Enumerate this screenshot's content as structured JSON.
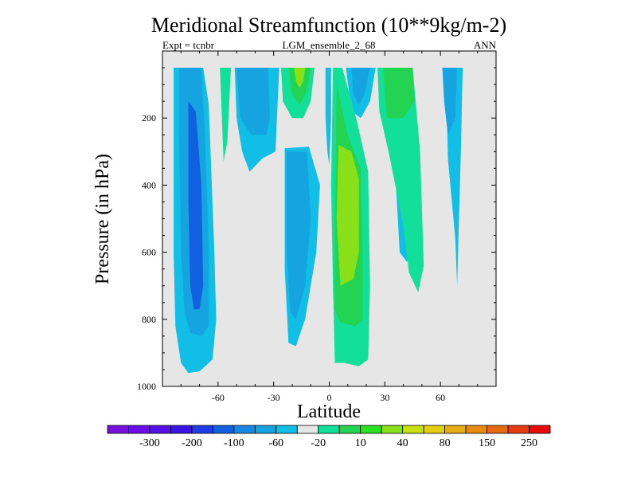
{
  "chart_data": {
    "type": "heatmap",
    "title": "Meridional Streamfunction (10**9kg/m-2)",
    "subtitle_left": "Expt = tcnbr",
    "subtitle_center": "LGM_ensemble_2_68",
    "subtitle_right": "ANN",
    "xlabel": "Latitude",
    "ylabel": "Pressure (in hPa)",
    "xlim": [
      -90,
      90
    ],
    "ylim": [
      0,
      1000
    ],
    "x_ticks": [
      {
        "value": -60,
        "label": "-60"
      },
      {
        "value": -30,
        "label": "-30"
      },
      {
        "value": 0,
        "label": "0"
      },
      {
        "value": 30,
        "label": "30"
      },
      {
        "value": 60,
        "label": "60"
      }
    ],
    "y_ticks": [
      {
        "value": 200,
        "label": "200"
      },
      {
        "value": 400,
        "label": "400"
      },
      {
        "value": 600,
        "label": "600"
      },
      {
        "value": 800,
        "label": "800"
      },
      {
        "value": 1000,
        "label": "1000"
      }
    ],
    "background_color": "#e6e6e6",
    "colorbar": {
      "colors": [
        "#7a10e0",
        "#6a0ee6",
        "#5410e6",
        "#3a14e6",
        "#1f3ce6",
        "#1060e0",
        "#1a88e0",
        "#16a4e0",
        "#10bee6",
        "#e6e6e6",
        "#12e09a",
        "#22d452",
        "#2ae020",
        "#8ae018",
        "#c8e010",
        "#e0d010",
        "#e6ac10",
        "#e68a10",
        "#e66a10",
        "#e63a10",
        "#e60a0a"
      ],
      "labels": [
        "-300",
        "-200",
        "-100",
        "-60",
        "-20",
        "10",
        "40",
        "80",
        "150",
        "250"
      ],
      "label_after_box": [
        1,
        3,
        5,
        7,
        9,
        11,
        13,
        15,
        17,
        19
      ]
    },
    "regions": [
      {
        "name": "south-cell-outer",
        "value": -20,
        "color": "#10bee6",
        "points": [
          [
            -84,
            50
          ],
          [
            -68,
            50
          ],
          [
            -65,
            160
          ],
          [
            -62,
            600
          ],
          [
            -61,
            800
          ],
          [
            -63,
            920
          ],
          [
            -70,
            955
          ],
          [
            -76,
            960
          ],
          [
            -80,
            930
          ],
          [
            -83,
            820
          ],
          [
            -84,
            600
          ]
        ]
      },
      {
        "name": "south-cell-mid",
        "value": -60,
        "color": "#16a4e0",
        "points": [
          [
            -81,
            50
          ],
          [
            -69,
            50
          ],
          [
            -67,
            250
          ],
          [
            -65,
            600
          ],
          [
            -65,
            820
          ],
          [
            -69,
            850
          ],
          [
            -75,
            840
          ],
          [
            -78,
            780
          ],
          [
            -80,
            600
          ],
          [
            -81,
            250
          ]
        ]
      },
      {
        "name": "south-cell-inner",
        "value": -100,
        "color": "#1060e0",
        "points": [
          [
            -76,
            150
          ],
          [
            -72,
            180
          ],
          [
            -69,
            400
          ],
          [
            -68,
            700
          ],
          [
            -70,
            770
          ],
          [
            -73,
            770
          ],
          [
            -75,
            700
          ],
          [
            -76,
            450
          ]
        ]
      },
      {
        "name": "band-a-cyan",
        "value": -20,
        "color": "#10bee6",
        "points": [
          [
            -51,
            50
          ],
          [
            -27,
            50
          ],
          [
            -29,
            300
          ],
          [
            -36,
            320
          ],
          [
            -43,
            360
          ],
          [
            -47,
            300
          ],
          [
            -50,
            200
          ]
        ]
      },
      {
        "name": "band-a-blue",
        "value": -60,
        "color": "#16a4e0",
        "points": [
          [
            -50,
            50
          ],
          [
            -33,
            50
          ],
          [
            -32,
            200
          ],
          [
            -34,
            250
          ],
          [
            -42,
            250
          ],
          [
            -48,
            200
          ]
        ]
      },
      {
        "name": "band-b-cyan",
        "value": -20,
        "color": "#10bee6",
        "points": [
          [
            -24,
            290
          ],
          [
            -11,
            285
          ],
          [
            -5,
            400
          ],
          [
            -7,
            600
          ],
          [
            -13,
            800
          ],
          [
            -18,
            880
          ],
          [
            -22,
            870
          ],
          [
            -24,
            650
          ]
        ]
      },
      {
        "name": "band-b-blue",
        "value": -60,
        "color": "#16a4e0",
        "points": [
          [
            -23,
            300
          ],
          [
            -12,
            300
          ],
          [
            -10,
            500
          ],
          [
            -13,
            700
          ],
          [
            -18,
            800
          ],
          [
            -21,
            780
          ],
          [
            -23,
            600
          ]
        ]
      },
      {
        "name": "nh-top-cyan",
        "value": -20,
        "color": "#10bee6",
        "points": [
          [
            9,
            50
          ],
          [
            25,
            50
          ],
          [
            22,
            150
          ],
          [
            17,
            200
          ],
          [
            12,
            180
          ]
        ]
      },
      {
        "name": "nh-top-blue",
        "value": -60,
        "color": "#16a4e0",
        "points": [
          [
            12,
            50
          ],
          [
            22,
            50
          ],
          [
            19,
            130
          ],
          [
            16,
            160
          ],
          [
            13,
            130
          ]
        ]
      },
      {
        "name": "thin-cyan-1",
        "value": -20,
        "color": "#10bee6",
        "points": [
          [
            -2,
            50
          ],
          [
            1,
            50
          ],
          [
            1,
            200
          ],
          [
            0,
            340
          ],
          [
            -1,
            300
          ],
          [
            -2,
            200
          ]
        ]
      },
      {
        "name": "tail-cyan-1",
        "value": -20,
        "color": "#10bee6",
        "points": [
          [
            38,
            100
          ],
          [
            41,
            380
          ],
          [
            43,
            600
          ],
          [
            42,
            630
          ],
          [
            38,
            600
          ],
          [
            36,
            400
          ]
        ]
      },
      {
        "name": "nh-right-cyan",
        "value": -20,
        "color": "#10bee6",
        "points": [
          [
            63,
            50
          ],
          [
            72,
            50
          ],
          [
            71,
            300
          ],
          [
            69,
            700
          ],
          [
            68,
            560
          ],
          [
            64,
            320
          ]
        ]
      },
      {
        "name": "nh-right-blue",
        "value": -60,
        "color": "#16a4e0",
        "points": [
          [
            61,
            50
          ],
          [
            69,
            50
          ],
          [
            68,
            200
          ],
          [
            64,
            250
          ],
          [
            62,
            150
          ]
        ]
      },
      {
        "name": "tail-green",
        "value": 10,
        "color": "#12e09a",
        "points": [
          [
            -59,
            50
          ],
          [
            -53,
            50
          ],
          [
            -55,
            270
          ],
          [
            -57,
            330
          ]
        ]
      },
      {
        "name": "sa-green",
        "value": 10,
        "color": "#12e09a",
        "points": [
          [
            -26,
            50
          ],
          [
            -8,
            50
          ],
          [
            -10,
            150
          ],
          [
            -14,
            200
          ],
          [
            -20,
            200
          ],
          [
            -25,
            150
          ]
        ]
      },
      {
        "name": "sa-green-inner",
        "value": 40,
        "color": "#22d452",
        "points": [
          [
            -22,
            50
          ],
          [
            -10,
            50
          ],
          [
            -12,
            120
          ],
          [
            -16,
            160
          ],
          [
            -20,
            130
          ]
        ]
      },
      {
        "name": "sa-green-core",
        "value": 80,
        "color": "#8ae018",
        "points": [
          [
            -19,
            50
          ],
          [
            -13,
            50
          ],
          [
            -14,
            90
          ],
          [
            -16,
            110
          ],
          [
            -18,
            90
          ]
        ]
      },
      {
        "name": "nh-main-teal",
        "value": 10,
        "color": "#12e09a",
        "points": [
          [
            2,
            50
          ],
          [
            7,
            50
          ],
          [
            15,
            210
          ],
          [
            21,
            360
          ],
          [
            22,
            700
          ],
          [
            21,
            920
          ],
          [
            16,
            940
          ],
          [
            8,
            930
          ],
          [
            3,
            930
          ],
          [
            2,
            700
          ],
          [
            1,
            400
          ]
        ]
      },
      {
        "name": "nh-main-green",
        "value": 40,
        "color": "#22d452",
        "points": [
          [
            4,
            100
          ],
          [
            6,
            150
          ],
          [
            10,
            250
          ],
          [
            17,
            350
          ],
          [
            18,
            600
          ],
          [
            18,
            800
          ],
          [
            14,
            820
          ],
          [
            6,
            810
          ],
          [
            3,
            770
          ],
          [
            3,
            500
          ]
        ]
      },
      {
        "name": "nh-main-light",
        "value": 80,
        "color": "#8ae018",
        "points": [
          [
            5,
            280
          ],
          [
            12,
            300
          ],
          [
            16,
            380
          ],
          [
            16,
            600
          ],
          [
            13,
            680
          ],
          [
            6,
            700
          ],
          [
            4,
            500
          ]
        ]
      },
      {
        "name": "nh-right-teal",
        "value": 10,
        "color": "#12e09a",
        "points": [
          [
            26,
            50
          ],
          [
            45,
            50
          ],
          [
            49,
            300
          ],
          [
            51,
            640
          ],
          [
            48,
            720
          ],
          [
            43,
            660
          ],
          [
            40,
            520
          ],
          [
            32,
            300
          ],
          [
            27,
            180
          ]
        ]
      },
      {
        "name": "nh-right-green",
        "value": 40,
        "color": "#22d452",
        "points": [
          [
            29,
            50
          ],
          [
            45,
            50
          ],
          [
            46,
            150
          ],
          [
            40,
            200
          ],
          [
            31,
            200
          ]
        ]
      }
    ]
  }
}
